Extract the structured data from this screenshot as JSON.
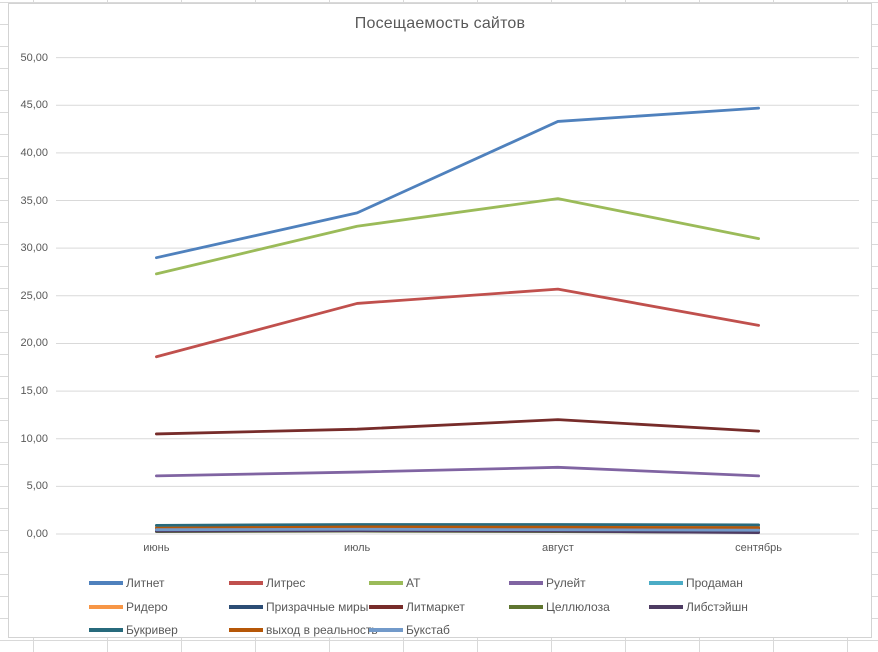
{
  "chart_data": {
    "type": "line",
    "title": "Посещаемость сайтов",
    "categories": [
      "июнь",
      "июль",
      "август",
      "сентябрь"
    ],
    "y_tick_labels": [
      "0,00",
      "5,00",
      "10,00",
      "15,00",
      "20,00",
      "25,00",
      "30,00",
      "35,00",
      "40,00",
      "45,00",
      "50,00"
    ],
    "ylim": [
      0,
      50
    ],
    "y_step": 5,
    "grid": true,
    "legend_position": "bottom",
    "gridline_color": "#d9d9d9",
    "text_color": "#595959",
    "series": [
      {
        "name": "Литнет",
        "color": "#4F81BD",
        "values": [
          29.0,
          33.7,
          43.3,
          44.7
        ]
      },
      {
        "name": "Литрес",
        "color": "#C0504D",
        "values": [
          18.6,
          24.2,
          25.7,
          21.9
        ]
      },
      {
        "name": "АТ",
        "color": "#9BBB59",
        "values": [
          27.3,
          32.3,
          35.2,
          31.0
        ]
      },
      {
        "name": "Рулейт",
        "color": "#8064A2",
        "values": [
          6.1,
          6.5,
          7.0,
          6.1
        ]
      },
      {
        "name": "Продаман",
        "color": "#4BACC6",
        "values": [
          0.75,
          0.85,
          0.85,
          0.8
        ]
      },
      {
        "name": "Ридеро",
        "color": "#F79646",
        "values": [
          0.7,
          0.9,
          0.8,
          0.7
        ]
      },
      {
        "name": "Призрачные миры",
        "color": "#2C4D75",
        "values": [
          0.5,
          0.6,
          0.6,
          0.55
        ]
      },
      {
        "name": "Литмаркет",
        "color": "#772C2A",
        "values": [
          10.5,
          11.0,
          12.0,
          10.8
        ]
      },
      {
        "name": "Целлюлоза",
        "color": "#5F7530",
        "values": [
          0.25,
          0.3,
          0.25,
          0.2
        ]
      },
      {
        "name": "Либстэйшн",
        "color": "#4D3B62",
        "values": [
          0.3,
          0.35,
          0.3,
          0.15
        ]
      },
      {
        "name": "Букривер",
        "color": "#276A7C",
        "values": [
          0.9,
          1.0,
          1.0,
          0.95
        ]
      },
      {
        "name": "выход в реальность",
        "color": "#B65708",
        "values": [
          0.6,
          0.75,
          0.7,
          0.65
        ]
      },
      {
        "name": "Букстаб",
        "color": "#729ACA",
        "values": [
          0.45,
          0.5,
          0.45,
          0.4
        ]
      }
    ]
  }
}
